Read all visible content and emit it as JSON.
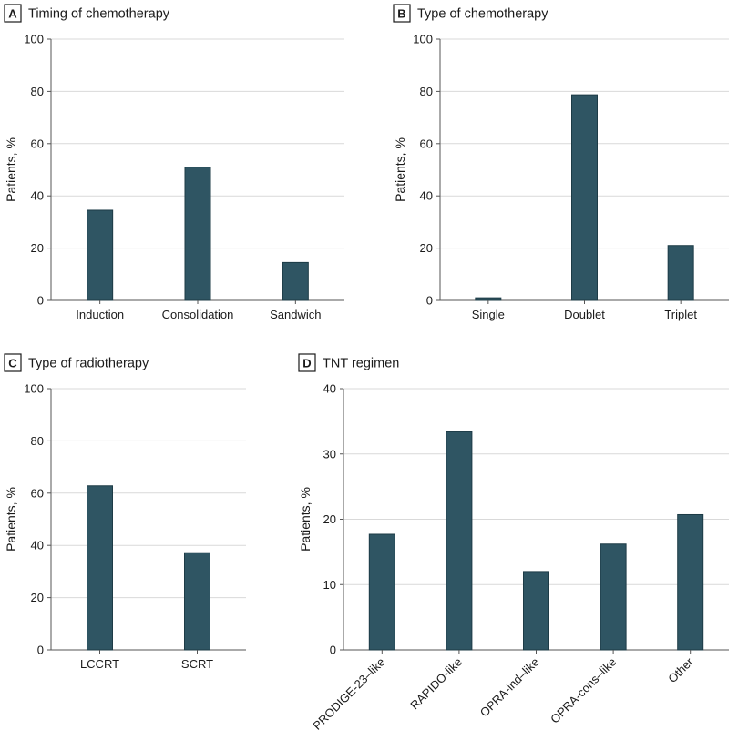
{
  "colors": {
    "bar": "#2f5563",
    "bar_stroke": "#1d3b46",
    "grid": "#d9d9d9",
    "axis": "#555555",
    "text": "#1a1a1a"
  },
  "chart_data": [
    {
      "panel_letter": "A",
      "title": "Timing of chemotherapy",
      "type": "bar",
      "ylabel": "Patients, %",
      "ylim": [
        0,
        100
      ],
      "yticks": [
        0,
        20,
        40,
        60,
        80,
        100
      ],
      "categories": [
        "Induction",
        "Consolidation",
        "Sandwich"
      ],
      "values": [
        34.5,
        51,
        14.5
      ],
      "rotate_labels": false,
      "grid": true
    },
    {
      "panel_letter": "B",
      "title": "Type of chemotherapy",
      "type": "bar",
      "ylabel": "Patients, %",
      "ylim": [
        0,
        100
      ],
      "yticks": [
        0,
        20,
        40,
        60,
        80,
        100
      ],
      "categories": [
        "Single",
        "Doublet",
        "Triplet"
      ],
      "values": [
        1,
        78.7,
        21
      ],
      "rotate_labels": false,
      "grid": true
    },
    {
      "panel_letter": "C",
      "title": "Type of radiotherapy",
      "type": "bar",
      "ylabel": "Patients, %",
      "ylim": [
        0,
        100
      ],
      "yticks": [
        0,
        20,
        40,
        60,
        80,
        100
      ],
      "categories": [
        "LCCRT",
        "SCRT"
      ],
      "values": [
        62.8,
        37.2
      ],
      "rotate_labels": false,
      "grid": true
    },
    {
      "panel_letter": "D",
      "title": "TNT regimen",
      "type": "bar",
      "ylabel": "Patients, %",
      "ylim": [
        0,
        40
      ],
      "yticks": [
        0,
        10,
        20,
        30,
        40
      ],
      "categories": [
        "PRODIGE-23–like",
        "RAPIDO-like",
        "OPRA-ind–like",
        "OPRA-cons–like",
        "Other"
      ],
      "values": [
        17.7,
        33.4,
        12,
        16.2,
        20.7
      ],
      "rotate_labels": true,
      "grid": true
    }
  ]
}
